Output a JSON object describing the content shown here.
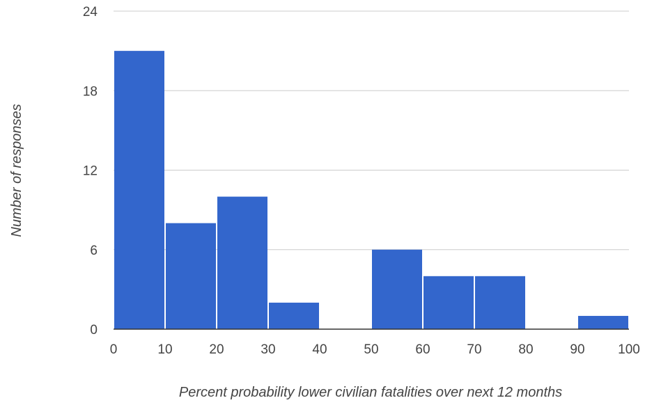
{
  "chart_data": {
    "type": "bar",
    "bins": [
      {
        "start": 0,
        "end": 10,
        "count": 21
      },
      {
        "start": 10,
        "end": 20,
        "count": 8
      },
      {
        "start": 20,
        "end": 30,
        "count": 10
      },
      {
        "start": 30,
        "end": 40,
        "count": 2
      },
      {
        "start": 40,
        "end": 50,
        "count": 0
      },
      {
        "start": 50,
        "end": 60,
        "count": 6
      },
      {
        "start": 60,
        "end": 70,
        "count": 4
      },
      {
        "start": 70,
        "end": 80,
        "count": 4
      },
      {
        "start": 80,
        "end": 90,
        "count": 0
      },
      {
        "start": 90,
        "end": 100,
        "count": 1
      }
    ],
    "xlabel": "Percent probability lower civilian fatalities over next 12 months",
    "ylabel": "Number of responses",
    "xlim": [
      0,
      100
    ],
    "ylim": [
      0,
      24
    ],
    "xticks": [
      0,
      10,
      20,
      30,
      40,
      50,
      60,
      70,
      80,
      90,
      100
    ],
    "yticks": [
      0,
      6,
      12,
      18,
      24
    ],
    "grid": true,
    "bar_color": "#3366cc",
    "grid_color": "#cccccc",
    "axis_color": "#333333"
  }
}
